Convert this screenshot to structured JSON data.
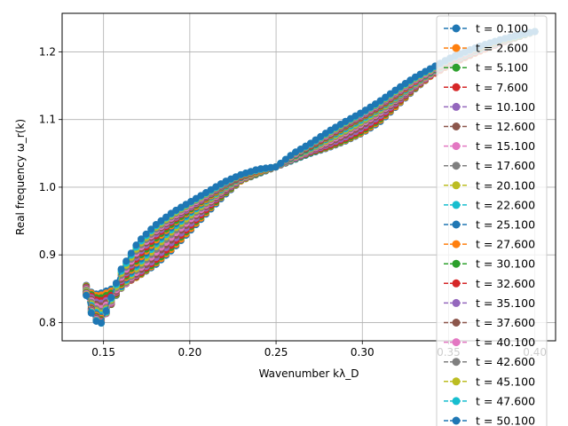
{
  "chart_data": {
    "type": "line",
    "xlabel": "Wavenumber kλ_D",
    "ylabel": "Real frequency ω_r(k)",
    "xlim": [
      0.126,
      0.412
    ],
    "ylim": [
      0.773,
      1.257
    ],
    "xticks": [
      0.15,
      0.2,
      0.25,
      0.3,
      0.35,
      0.4
    ],
    "xtick_labels": [
      "0.15",
      "0.20",
      "0.25",
      "0.30",
      "0.35",
      "0.40"
    ],
    "yticks": [
      0.8,
      0.9,
      1.0,
      1.1,
      1.2
    ],
    "ytick_labels": [
      "0.8",
      "0.9",
      "1.0",
      "1.1",
      "1.2"
    ],
    "grid": true,
    "legend_position": "right",
    "marker": "circle",
    "line_style": "dashed",
    "x": [
      0.14,
      0.142,
      0.145,
      0.148,
      0.15,
      0.155,
      0.16,
      0.17,
      0.18,
      0.19,
      0.2,
      0.21,
      0.22,
      0.23,
      0.24,
      0.25,
      0.26,
      0.27,
      0.28,
      0.29,
      0.3,
      0.31,
      0.32,
      0.33,
      0.34,
      0.35,
      0.36,
      0.37,
      0.38,
      0.39,
      0.4
    ],
    "series": [
      {
        "name": "t = 0.100",
        "color": "#1f77b4",
        "values": [
          0.855,
          0.846,
          0.842,
          0.843,
          0.845,
          0.85,
          0.855,
          0.868,
          0.885,
          0.908,
          0.935,
          0.962,
          0.988,
          1.01,
          1.02,
          1.03,
          1.04,
          1.05,
          1.058,
          1.068,
          1.08,
          1.096,
          1.12,
          1.144,
          1.165,
          1.18,
          1.192,
          1.203,
          1.213,
          1.222,
          1.23
        ]
      },
      {
        "name": "t = 2.600",
        "color": "#ff7f0e",
        "values": [
          0.854,
          0.845,
          0.84,
          0.84,
          0.842,
          0.847,
          0.854,
          0.868,
          0.887,
          0.91,
          0.937,
          0.964,
          0.99,
          1.01,
          1.021,
          1.03,
          1.041,
          1.051,
          1.059,
          1.069,
          1.081,
          1.098,
          1.121,
          1.145,
          1.165,
          1.18,
          1.192,
          1.203,
          1.213,
          1.222,
          1.23
        ]
      },
      {
        "name": "t = 5.100",
        "color": "#2ca02c",
        "values": [
          0.853,
          0.843,
          0.837,
          0.836,
          0.838,
          0.844,
          0.853,
          0.869,
          0.889,
          0.913,
          0.94,
          0.966,
          0.991,
          1.011,
          1.021,
          1.03,
          1.041,
          1.051,
          1.06,
          1.07,
          1.083,
          1.1,
          1.123,
          1.146,
          1.166,
          1.181,
          1.193,
          1.204,
          1.213,
          1.222,
          1.23
        ]
      },
      {
        "name": "t = 7.600",
        "color": "#d62728",
        "values": [
          0.852,
          0.841,
          0.834,
          0.832,
          0.834,
          0.841,
          0.852,
          0.87,
          0.892,
          0.916,
          0.942,
          0.968,
          0.993,
          1.012,
          1.022,
          1.03,
          1.042,
          1.052,
          1.061,
          1.072,
          1.085,
          1.102,
          1.124,
          1.147,
          1.166,
          1.181,
          1.193,
          1.204,
          1.213,
          1.222,
          1.23
        ]
      },
      {
        "name": "t = 10.100",
        "color": "#9467bd",
        "values": [
          0.851,
          0.839,
          0.831,
          0.828,
          0.83,
          0.838,
          0.851,
          0.872,
          0.895,
          0.92,
          0.945,
          0.971,
          0.994,
          1.012,
          1.022,
          1.03,
          1.042,
          1.053,
          1.063,
          1.074,
          1.088,
          1.105,
          1.126,
          1.148,
          1.167,
          1.182,
          1.194,
          1.205,
          1.214,
          1.222,
          1.23
        ]
      },
      {
        "name": "t = 12.600",
        "color": "#8c564b",
        "values": [
          0.85,
          0.837,
          0.828,
          0.824,
          0.826,
          0.836,
          0.85,
          0.874,
          0.899,
          0.924,
          0.949,
          0.973,
          0.995,
          1.013,
          1.022,
          1.03,
          1.043,
          1.054,
          1.065,
          1.077,
          1.091,
          1.108,
          1.128,
          1.149,
          1.168,
          1.182,
          1.194,
          1.205,
          1.214,
          1.222,
          1.23
        ]
      },
      {
        "name": "t = 15.100",
        "color": "#e377c2",
        "values": [
          0.849,
          0.835,
          0.825,
          0.82,
          0.822,
          0.834,
          0.85,
          0.877,
          0.903,
          0.928,
          0.952,
          0.975,
          0.997,
          1.013,
          1.023,
          1.03,
          1.043,
          1.055,
          1.067,
          1.08,
          1.094,
          1.11,
          1.13,
          1.15,
          1.168,
          1.183,
          1.195,
          1.205,
          1.214,
          1.223,
          1.23
        ]
      },
      {
        "name": "t = 17.600",
        "color": "#7f7f7f",
        "values": [
          0.848,
          0.833,
          0.822,
          0.816,
          0.818,
          0.832,
          0.85,
          0.88,
          0.907,
          0.932,
          0.955,
          0.977,
          0.998,
          1.014,
          1.023,
          1.03,
          1.044,
          1.056,
          1.069,
          1.082,
          1.096,
          1.112,
          1.131,
          1.151,
          1.169,
          1.183,
          1.195,
          1.206,
          1.215,
          1.223,
          1.23
        ]
      },
      {
        "name": "t = 20.100",
        "color": "#bcbd22",
        "values": [
          0.847,
          0.831,
          0.819,
          0.813,
          0.815,
          0.831,
          0.851,
          0.883,
          0.911,
          0.936,
          0.958,
          0.979,
          0.999,
          1.014,
          1.023,
          1.03,
          1.044,
          1.057,
          1.07,
          1.084,
          1.098,
          1.114,
          1.133,
          1.152,
          1.169,
          1.184,
          1.196,
          1.206,
          1.215,
          1.223,
          1.23
        ]
      },
      {
        "name": "t = 22.600",
        "color": "#17becf",
        "values": [
          0.846,
          0.829,
          0.817,
          0.81,
          0.813,
          0.83,
          0.852,
          0.886,
          0.915,
          0.939,
          0.961,
          0.981,
          1.0,
          1.015,
          1.024,
          1.03,
          1.045,
          1.058,
          1.072,
          1.086,
          1.1,
          1.116,
          1.134,
          1.153,
          1.17,
          1.184,
          1.196,
          1.206,
          1.215,
          1.223,
          1.23
        ]
      },
      {
        "name": "t = 25.100",
        "color": "#1f77b4",
        "values": [
          0.845,
          0.827,
          0.815,
          0.807,
          0.811,
          0.829,
          0.853,
          0.889,
          0.918,
          0.942,
          0.963,
          0.982,
          1.001,
          1.015,
          1.024,
          1.03,
          1.045,
          1.059,
          1.073,
          1.088,
          1.102,
          1.117,
          1.135,
          1.154,
          1.17,
          1.185,
          1.197,
          1.207,
          1.216,
          1.223,
          1.23
        ]
      },
      {
        "name": "t = 27.600",
        "color": "#ff7f0e",
        "values": [
          0.845,
          0.826,
          0.813,
          0.805,
          0.809,
          0.829,
          0.855,
          0.892,
          0.921,
          0.945,
          0.965,
          0.983,
          1.002,
          1.016,
          1.024,
          1.03,
          1.046,
          1.06,
          1.074,
          1.089,
          1.103,
          1.118,
          1.136,
          1.155,
          1.171,
          1.185,
          1.197,
          1.207,
          1.216,
          1.223,
          1.23
        ]
      },
      {
        "name": "t = 30.100",
        "color": "#2ca02c",
        "values": [
          0.844,
          0.825,
          0.811,
          0.803,
          0.807,
          0.829,
          0.857,
          0.895,
          0.924,
          0.947,
          0.967,
          0.985,
          1.003,
          1.016,
          1.025,
          1.03,
          1.046,
          1.06,
          1.075,
          1.09,
          1.104,
          1.119,
          1.137,
          1.156,
          1.171,
          1.186,
          1.198,
          1.207,
          1.216,
          1.223,
          1.23
        ]
      },
      {
        "name": "t = 32.600",
        "color": "#d62728",
        "values": [
          0.843,
          0.824,
          0.81,
          0.801,
          0.806,
          0.83,
          0.859,
          0.898,
          0.927,
          0.95,
          0.969,
          0.986,
          1.004,
          1.016,
          1.025,
          1.03,
          1.047,
          1.061,
          1.076,
          1.091,
          1.105,
          1.12,
          1.138,
          1.156,
          1.172,
          1.186,
          1.198,
          1.208,
          1.216,
          1.224,
          1.23
        ]
      },
      {
        "name": "t = 35.100",
        "color": "#9467bd",
        "values": [
          0.843,
          0.823,
          0.809,
          0.8,
          0.805,
          0.831,
          0.861,
          0.901,
          0.93,
          0.952,
          0.97,
          0.987,
          1.004,
          1.017,
          1.025,
          1.03,
          1.047,
          1.062,
          1.077,
          1.092,
          1.106,
          1.121,
          1.139,
          1.157,
          1.172,
          1.187,
          1.198,
          1.208,
          1.217,
          1.224,
          1.23
        ]
      },
      {
        "name": "t = 37.600",
        "color": "#8c564b",
        "values": [
          0.842,
          0.822,
          0.808,
          0.799,
          0.805,
          0.832,
          0.863,
          0.904,
          0.933,
          0.954,
          0.972,
          0.988,
          1.005,
          1.017,
          1.025,
          1.03,
          1.048,
          1.062,
          1.078,
          1.093,
          1.107,
          1.122,
          1.14,
          1.158,
          1.173,
          1.187,
          1.199,
          1.208,
          1.217,
          1.224,
          1.23
        ]
      },
      {
        "name": "t = 40.100",
        "color": "#e377c2",
        "values": [
          0.842,
          0.821,
          0.807,
          0.798,
          0.805,
          0.833,
          0.866,
          0.907,
          0.935,
          0.956,
          0.973,
          0.989,
          1.006,
          1.018,
          1.026,
          1.03,
          1.048,
          1.063,
          1.078,
          1.094,
          1.108,
          1.123,
          1.141,
          1.158,
          1.173,
          1.188,
          1.199,
          1.209,
          1.217,
          1.224,
          1.23
        ]
      },
      {
        "name": "t = 42.600",
        "color": "#7f7f7f",
        "values": [
          0.841,
          0.82,
          0.806,
          0.797,
          0.805,
          0.835,
          0.869,
          0.91,
          0.937,
          0.958,
          0.975,
          0.99,
          1.006,
          1.018,
          1.026,
          1.03,
          1.049,
          1.063,
          1.079,
          1.094,
          1.109,
          1.124,
          1.142,
          1.159,
          1.174,
          1.188,
          1.2,
          1.209,
          1.217,
          1.224,
          1.23
        ]
      },
      {
        "name": "t = 45.100",
        "color": "#bcbd22",
        "values": [
          0.841,
          0.82,
          0.805,
          0.797,
          0.805,
          0.837,
          0.872,
          0.913,
          0.94,
          0.96,
          0.976,
          0.991,
          1.007,
          1.018,
          1.026,
          1.03,
          1.049,
          1.064,
          1.08,
          1.095,
          1.11,
          1.125,
          1.143,
          1.16,
          1.174,
          1.189,
          1.2,
          1.209,
          1.217,
          1.224,
          1.23
        ]
      },
      {
        "name": "t = 47.600",
        "color": "#17becf",
        "values": [
          0.84,
          0.819,
          0.805,
          0.796,
          0.805,
          0.839,
          0.875,
          0.916,
          0.942,
          0.962,
          0.977,
          0.992,
          1.007,
          1.019,
          1.026,
          1.03,
          1.05,
          1.064,
          1.081,
          1.096,
          1.11,
          1.126,
          1.144,
          1.161,
          1.175,
          1.189,
          1.2,
          1.21,
          1.218,
          1.224,
          1.23
        ]
      },
      {
        "name": "t = 50.100",
        "color": "#1f77b4",
        "values": [
          0.84,
          0.818,
          0.804,
          0.796,
          0.806,
          0.841,
          0.878,
          0.919,
          0.944,
          0.963,
          0.978,
          0.993,
          1.008,
          1.019,
          1.027,
          1.03,
          1.05,
          1.065,
          1.082,
          1.097,
          1.111,
          1.127,
          1.145,
          1.162,
          1.176,
          1.19,
          1.201,
          1.21,
          1.218,
          1.225,
          1.23
        ]
      }
    ]
  }
}
